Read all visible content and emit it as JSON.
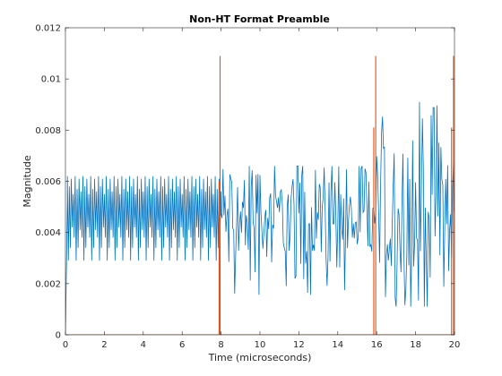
{
  "chart_data": {
    "type": "line",
    "title": "Non-HT Format Preamble",
    "xlabel": "Time (microseconds)",
    "ylabel": "Magnitude",
    "xlim": [
      0,
      20
    ],
    "ylim": [
      0,
      0.012
    ],
    "xticks": [
      0,
      2,
      4,
      6,
      8,
      10,
      12,
      14,
      16,
      18,
      20
    ],
    "xtick_labels": [
      "0",
      "2",
      "4",
      "6",
      "8",
      "10",
      "12",
      "14",
      "16",
      "18",
      "20"
    ],
    "yticks": [
      0,
      0.002,
      0.004,
      0.006,
      0.008,
      0.01,
      0.012
    ],
    "ytick_labels": [
      "0",
      "0.002",
      "0.004",
      "0.006",
      "0.008",
      "0.01",
      "0.012"
    ],
    "grid": false,
    "legend": "none",
    "series": [
      {
        "color": "#0072BD",
        "style": "oscillating waveform",
        "segments": [
          {
            "x_range": [
              0,
              0.1
            ],
            "ramp_from": 0,
            "ramp_to": 0.0052
          },
          {
            "x_range": [
              0.1,
              8.0
            ],
            "period_us": 0.8,
            "levels": [
              0.0062,
              0.0029,
              0.0058,
              0.0034,
              0.0061,
              0.0042,
              0.0055,
              0.0038,
              0.0062,
              0.0029,
              0.0057,
              0.0034,
              0.0061,
              0.0041,
              0.0056,
              0.0038
            ]
          },
          {
            "x_range": [
              8.0,
              16.0
            ],
            "min": 0.0015,
            "max": 0.0066,
            "typical": 0.0045
          },
          {
            "x_range": [
              16.0,
              20.0
            ],
            "min": 0.0011,
            "max": 0.0091,
            "typical": 0.0048
          }
        ]
      },
      {
        "color": "#D95319",
        "style": "impulses",
        "points": [
          {
            "x": 7.95,
            "y": 0.0109
          },
          {
            "x": 7.9,
            "y": 0.006
          },
          {
            "x": 15.95,
            "y": 0.0109
          },
          {
            "x": 15.85,
            "y": 0.0081
          },
          {
            "x": 19.95,
            "y": 0.0109
          },
          {
            "x": 19.85,
            "y": 0.0081
          }
        ]
      }
    ]
  }
}
